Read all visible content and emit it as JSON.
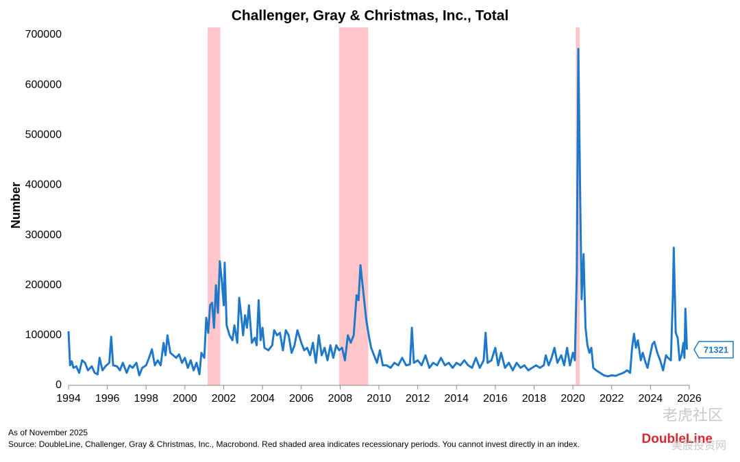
{
  "chart_data": {
    "type": "line",
    "title": "Challenger, Gray & Christmas, Inc., Total",
    "y_label": "Number",
    "x": [
      1994.0,
      1994.08,
      1994.17,
      1994.25,
      1994.4,
      1994.55,
      1994.7,
      1994.85,
      1995.0,
      1995.2,
      1995.35,
      1995.5,
      1995.6,
      1995.75,
      1995.9,
      1996.1,
      1996.2,
      1996.3,
      1996.5,
      1996.65,
      1996.8,
      1997.0,
      1997.15,
      1997.3,
      1997.5,
      1997.65,
      1997.8,
      1998.0,
      1998.15,
      1998.3,
      1998.45,
      1998.6,
      1998.75,
      1998.9,
      1999.0,
      1999.1,
      1999.25,
      1999.4,
      1999.55,
      1999.7,
      1999.85,
      2000.0,
      2000.15,
      2000.3,
      2000.45,
      2000.6,
      2000.75,
      2000.85,
      2001.0,
      2001.1,
      2001.2,
      2001.3,
      2001.4,
      2001.5,
      2001.6,
      2001.7,
      2001.8,
      2001.9,
      2002.0,
      2002.05,
      2002.15,
      2002.3,
      2002.45,
      2002.55,
      2002.7,
      2002.8,
      2002.9,
      2003.0,
      2003.1,
      2003.2,
      2003.3,
      2003.45,
      2003.6,
      2003.7,
      2003.8,
      2003.9,
      2004.0,
      2004.1,
      2004.3,
      2004.5,
      2004.6,
      2004.75,
      2004.9,
      2005.05,
      2005.2,
      2005.35,
      2005.5,
      2005.65,
      2005.8,
      2006.0,
      2006.15,
      2006.3,
      2006.45,
      2006.6,
      2006.75,
      2006.9,
      2007.05,
      2007.2,
      2007.35,
      2007.5,
      2007.65,
      2007.8,
      2007.95,
      2008.1,
      2008.25,
      2008.4,
      2008.55,
      2008.7,
      2008.85,
      2008.95,
      2009.05,
      2009.2,
      2009.35,
      2009.5,
      2009.6,
      2009.75,
      2009.9,
      2010.05,
      2010.2,
      2010.4,
      2010.6,
      2010.8,
      2011.0,
      2011.2,
      2011.4,
      2011.6,
      2011.7,
      2011.8,
      2012.0,
      2012.2,
      2012.4,
      2012.6,
      2012.8,
      2013.0,
      2013.2,
      2013.4,
      2013.6,
      2013.8,
      2014.0,
      2014.2,
      2014.4,
      2014.6,
      2014.8,
      2015.0,
      2015.2,
      2015.4,
      2015.5,
      2015.6,
      2015.8,
      2016.0,
      2016.15,
      2016.3,
      2016.5,
      2016.7,
      2016.9,
      2017.1,
      2017.3,
      2017.5,
      2017.7,
      2017.9,
      2018.1,
      2018.3,
      2018.5,
      2018.6,
      2018.75,
      2018.9,
      2019.05,
      2019.2,
      2019.4,
      2019.55,
      2019.7,
      2019.85,
      2020.0,
      2020.1,
      2020.2,
      2020.28,
      2020.37,
      2020.45,
      2020.55,
      2020.65,
      2020.75,
      2020.85,
      2020.95,
      2021.05,
      2021.2,
      2021.4,
      2021.6,
      2021.8,
      2022.0,
      2022.2,
      2022.4,
      2022.6,
      2022.8,
      2022.95,
      2023.05,
      2023.15,
      2023.25,
      2023.35,
      2023.5,
      2023.6,
      2023.75,
      2023.85,
      2023.95,
      2024.1,
      2024.2,
      2024.35,
      2024.5,
      2024.65,
      2024.8,
      2024.9,
      2025.05,
      2025.15,
      2025.2,
      2025.3,
      2025.4,
      2025.5,
      2025.6,
      2025.7,
      2025.75,
      2025.8,
      2025.88
    ],
    "series": [
      {
        "color": "#1f78c8",
        "values": [
          108000,
          40000,
          48000,
          35000,
          38000,
          25000,
          50000,
          45000,
          30000,
          38000,
          25000,
          22000,
          55000,
          30000,
          38000,
          45000,
          97000,
          40000,
          38000,
          30000,
          45000,
          25000,
          40000,
          35000,
          45000,
          20000,
          35000,
          40000,
          55000,
          72000,
          40000,
          50000,
          40000,
          85000,
          60000,
          100000,
          65000,
          60000,
          55000,
          62000,
          45000,
          55000,
          35000,
          50000,
          30000,
          45000,
          22000,
          65000,
          55000,
          135000,
          105000,
          160000,
          165000,
          115000,
          200000,
          145000,
          248000,
          210000,
          160000,
          245000,
          120000,
          100000,
          90000,
          120000,
          85000,
          175000,
          140000,
          100000,
          140000,
          115000,
          160000,
          85000,
          95000,
          80000,
          170000,
          90000,
          115000,
          75000,
          70000,
          80000,
          110000,
          100000,
          105000,
          70000,
          110000,
          100000,
          65000,
          80000,
          110000,
          85000,
          70000,
          75000,
          60000,
          85000,
          45000,
          100000,
          60000,
          75000,
          50000,
          80000,
          55000,
          80000,
          70000,
          75000,
          50000,
          100000,
          85000,
          100000,
          180000,
          170000,
          240000,
          185000,
          130000,
          95000,
          75000,
          60000,
          45000,
          70000,
          40000,
          40000,
          35000,
          45000,
          40000,
          55000,
          40000,
          42000,
          115000,
          45000,
          50000,
          40000,
          60000,
          35000,
          45000,
          40000,
          55000,
          40000,
          45000,
          35000,
          45000,
          40000,
          50000,
          40000,
          35000,
          55000,
          35000,
          50000,
          105000,
          45000,
          50000,
          75000,
          40000,
          65000,
          35000,
          45000,
          30000,
          45000,
          35000,
          40000,
          30000,
          35000,
          40000,
          35000,
          40000,
          60000,
          40000,
          55000,
          75000,
          45000,
          60000,
          40000,
          75000,
          40000,
          65000,
          50000,
          222000,
          672000,
          395000,
          172000,
          262000,
          115000,
          80000,
          65000,
          75000,
          35000,
          30000,
          25000,
          20000,
          18000,
          20000,
          19000,
          22000,
          25000,
          30000,
          25000,
          75000,
          103000,
          75000,
          90000,
          50000,
          65000,
          45000,
          35000,
          55000,
          82000,
          87000,
          65000,
          50000,
          30000,
          60000,
          55000,
          50000,
          175000,
          275000,
          105000,
          95000,
          50000,
          60000,
          85000,
          55000,
          153000,
          71321
        ]
      }
    ],
    "recessions": [
      [
        2001.17,
        2001.83
      ],
      [
        2007.95,
        2009.45
      ],
      [
        2020.15,
        2020.35
      ]
    ],
    "recession_color": "#ffc7c9",
    "xlim": [
      1994,
      2026
    ],
    "xticks": [
      1994,
      1996,
      1998,
      2000,
      2002,
      2004,
      2006,
      2008,
      2010,
      2012,
      2014,
      2016,
      2018,
      2020,
      2022,
      2024,
      2026
    ],
    "ylim": [
      0,
      700000
    ],
    "yticks": [
      0,
      100000,
      200000,
      300000,
      400000,
      500000,
      600000,
      700000
    ],
    "grid": false
  },
  "footer": {
    "as_of": "As of November 2025",
    "source": "Source: DoubleLine, Challenger, Gray & Christmas, Inc., Macrobond. Red shaded area indicates recessionary periods. You cannot invest directly in an index."
  },
  "logo": "DoubleLine",
  "watermarks": [
    "老虎社区",
    "美股投资网"
  ]
}
